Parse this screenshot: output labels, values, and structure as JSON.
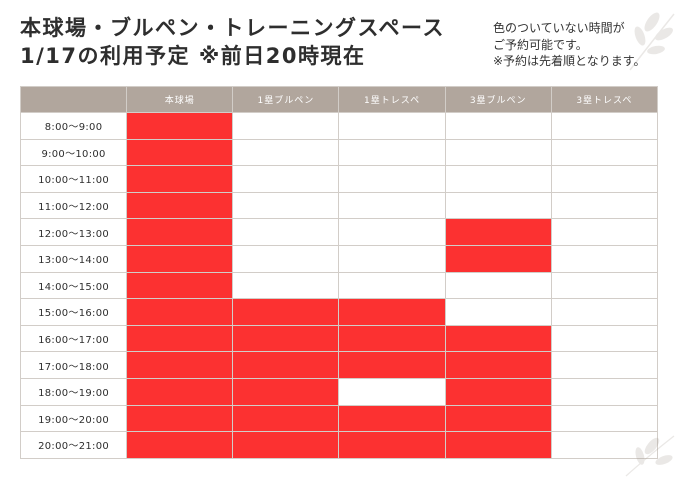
{
  "header": {
    "title_line1": "本球場・ブルペン・トレーニングスペース",
    "title_line2": "1/17の利用予定 ※前日20時現在",
    "note_line1": "色のついていない時間が",
    "note_line2": "ご予約可能です。",
    "note_line3": "※予約は先着順となります。"
  },
  "colors": {
    "booked": "#fc3131",
    "available": "#ffffff",
    "header_background": "#b1a69d"
  },
  "table": {
    "corner": "",
    "columns": [
      "本球場",
      "1塁ブルペン",
      "1塁トレスペ",
      "3塁ブルペン",
      "3塁トレスペ"
    ],
    "rows": [
      {
        "time": "8:00〜9:00",
        "booked": [
          true,
          false,
          false,
          false,
          false
        ]
      },
      {
        "time": "9:00〜10:00",
        "booked": [
          true,
          false,
          false,
          false,
          false
        ]
      },
      {
        "time": "10:00〜11:00",
        "booked": [
          true,
          false,
          false,
          false,
          false
        ]
      },
      {
        "time": "11:00〜12:00",
        "booked": [
          true,
          false,
          false,
          false,
          false
        ]
      },
      {
        "time": "12:00〜13:00",
        "booked": [
          true,
          false,
          false,
          true,
          false
        ]
      },
      {
        "time": "13:00〜14:00",
        "booked": [
          true,
          false,
          false,
          true,
          false
        ]
      },
      {
        "time": "14:00〜15:00",
        "booked": [
          true,
          false,
          false,
          false,
          false
        ]
      },
      {
        "time": "15:00〜16:00",
        "booked": [
          true,
          true,
          true,
          false,
          false
        ]
      },
      {
        "time": "16:00〜17:00",
        "booked": [
          true,
          true,
          true,
          true,
          false
        ]
      },
      {
        "time": "17:00〜18:00",
        "booked": [
          true,
          true,
          true,
          true,
          false
        ]
      },
      {
        "time": "18:00〜19:00",
        "booked": [
          true,
          true,
          false,
          true,
          false
        ]
      },
      {
        "time": "19:00〜20:00",
        "booked": [
          true,
          true,
          true,
          true,
          false
        ]
      },
      {
        "time": "20:00〜21:00",
        "booked": [
          true,
          true,
          true,
          true,
          false
        ]
      }
    ]
  }
}
